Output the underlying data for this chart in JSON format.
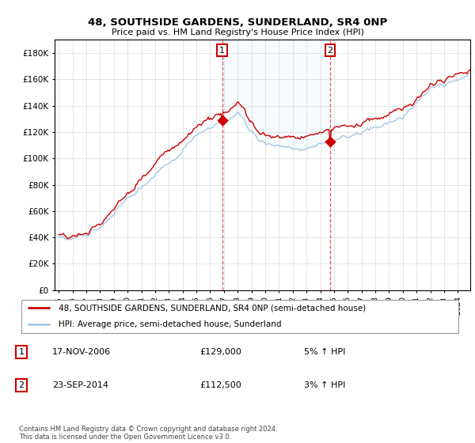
{
  "title": "48, SOUTHSIDE GARDENS, SUNDERLAND, SR4 0NP",
  "subtitle": "Price paid vs. HM Land Registry's House Price Index (HPI)",
  "ylim": [
    0,
    190000
  ],
  "yticks": [
    0,
    20000,
    40000,
    60000,
    80000,
    100000,
    120000,
    140000,
    160000,
    180000
  ],
  "ytick_labels": [
    "£0",
    "£20K",
    "£40K",
    "£60K",
    "£80K",
    "£100K",
    "£120K",
    "£140K",
    "£160K",
    "£180K"
  ],
  "sale1_date_num": 2006.88,
  "sale1_price": 129000,
  "sale2_date_num": 2014.72,
  "sale2_price": 112500,
  "hpi_color": "#a8c8e8",
  "hpi_fill_color": "#d8eaf8",
  "price_color": "#cc0000",
  "legend_line1": "48, SOUTHSIDE GARDENS, SUNDERLAND, SR4 0NP (semi-detached house)",
  "legend_line2": "HPI: Average price, semi-detached house, Sunderland",
  "table_row1_num": "1",
  "table_row1_date": "17-NOV-2006",
  "table_row1_price": "£129,000",
  "table_row1_hpi": "5% ↑ HPI",
  "table_row2_num": "2",
  "table_row2_date": "23-SEP-2014",
  "table_row2_price": "£112,500",
  "table_row2_hpi": "3% ↑ HPI",
  "footer": "Contains HM Land Registry data © Crown copyright and database right 2024.\nThis data is licensed under the Open Government Licence v3.0.",
  "background_color": "#ffffff",
  "grid_color": "#cccccc"
}
